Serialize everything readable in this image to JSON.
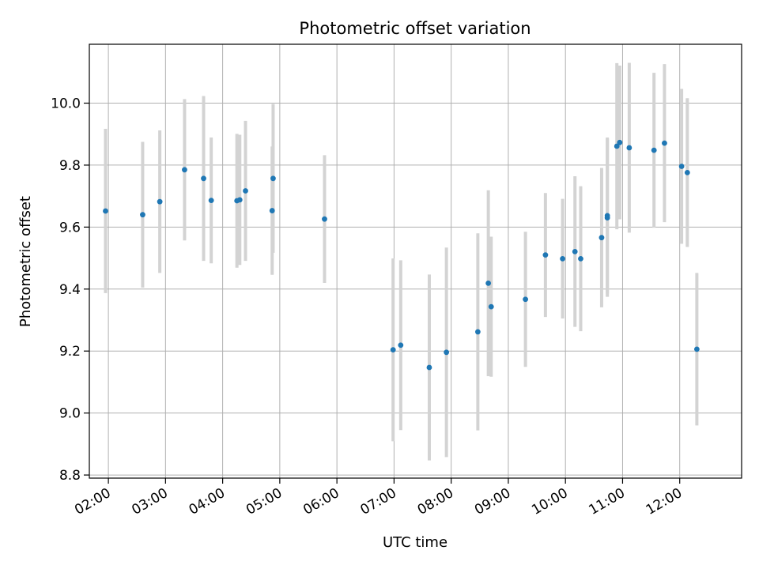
{
  "chart_data": {
    "type": "scatter",
    "title": "Photometric offset variation",
    "xlabel": "UTC time",
    "ylabel": "Photometric offset",
    "xlim": [
      "01:40",
      "13:05"
    ],
    "ylim": [
      8.79,
      10.19
    ],
    "grid": true,
    "x_ticks": [
      "02:00",
      "03:00",
      "04:00",
      "05:00",
      "06:00",
      "07:00",
      "08:00",
      "09:00",
      "10:00",
      "11:00",
      "12:00"
    ],
    "y_ticks": [
      "8.8",
      "9.0",
      "9.2",
      "9.4",
      "9.6",
      "9.8",
      "10.0"
    ],
    "point_color": "#1f77b4",
    "errorbar_color": "#d3d3d3",
    "series": [
      {
        "points": [
          {
            "x": "01:57",
            "y": 9.652,
            "err": 0.265
          },
          {
            "x": "02:36",
            "y": 9.64,
            "err": 0.235
          },
          {
            "x": "02:54",
            "y": 9.682,
            "err": 0.23
          },
          {
            "x": "03:20",
            "y": 9.785,
            "err": 0.228
          },
          {
            "x": "03:40",
            "y": 9.757,
            "err": 0.266
          },
          {
            "x": "03:48",
            "y": 9.686,
            "err": 0.203
          },
          {
            "x": "04:15",
            "y": 9.685,
            "err": 0.216
          },
          {
            "x": "04:18",
            "y": 9.688,
            "err": 0.21
          },
          {
            "x": "04:24",
            "y": 9.717,
            "err": 0.226
          },
          {
            "x": "04:52",
            "y": 9.653,
            "err": 0.207
          },
          {
            "x": "04:53",
            "y": 9.757,
            "err": 0.24
          },
          {
            "x": "05:47",
            "y": 9.626,
            "err": 0.206
          },
          {
            "x": "06:59",
            "y": 9.204,
            "err": 0.295
          },
          {
            "x": "07:07",
            "y": 9.219,
            "err": 0.274
          },
          {
            "x": "07:37",
            "y": 9.147,
            "err": 0.3
          },
          {
            "x": "07:55",
            "y": 9.196,
            "err": 0.338
          },
          {
            "x": "08:28",
            "y": 9.262,
            "err": 0.318
          },
          {
            "x": "08:39",
            "y": 9.419,
            "err": 0.3
          },
          {
            "x": "08:42",
            "y": 9.343,
            "err": 0.226
          },
          {
            "x": "09:18",
            "y": 9.367,
            "err": 0.218
          },
          {
            "x": "09:39",
            "y": 9.51,
            "err": 0.2
          },
          {
            "x": "09:57",
            "y": 9.498,
            "err": 0.193
          },
          {
            "x": "10:10",
            "y": 9.521,
            "err": 0.243
          },
          {
            "x": "10:16",
            "y": 9.498,
            "err": 0.234
          },
          {
            "x": "10:38",
            "y": 9.566,
            "err": 0.225
          },
          {
            "x": "10:44",
            "y": 9.637,
            "err": 0.252
          },
          {
            "x": "10:44",
            "y": 9.63,
            "err": 0.255
          },
          {
            "x": "10:54",
            "y": 9.861,
            "err": 0.268
          },
          {
            "x": "10:57",
            "y": 9.873,
            "err": 0.248
          },
          {
            "x": "11:07",
            "y": 9.856,
            "err": 0.274
          },
          {
            "x": "11:33",
            "y": 9.848,
            "err": 0.25
          },
          {
            "x": "11:44",
            "y": 9.871,
            "err": 0.255
          },
          {
            "x": "12:02",
            "y": 9.796,
            "err": 0.25
          },
          {
            "x": "12:08",
            "y": 9.776,
            "err": 0.24
          },
          {
            "x": "12:18",
            "y": 9.206,
            "err": 0.246
          }
        ]
      }
    ]
  }
}
